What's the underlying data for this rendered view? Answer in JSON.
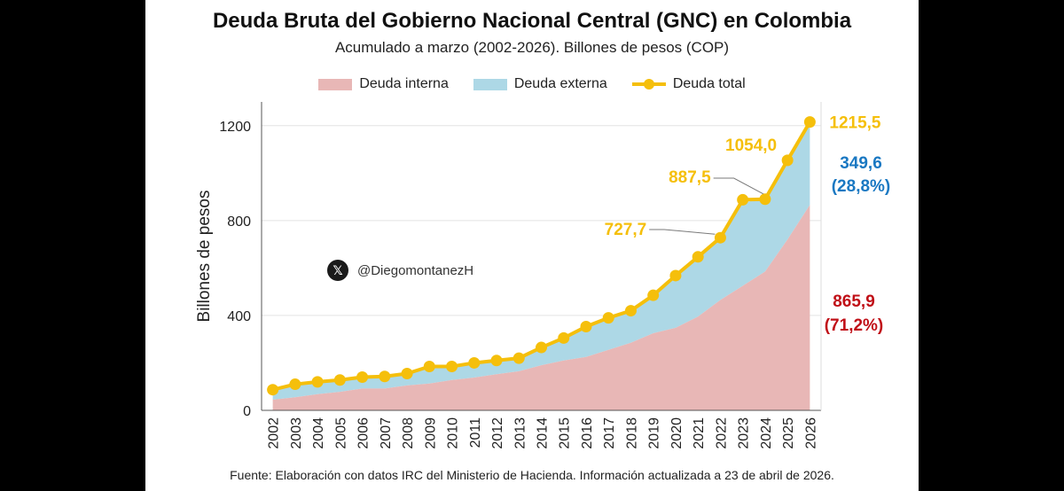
{
  "chart_data": {
    "type": "area",
    "title": "Deuda Bruta del Gobierno Nacional Central (GNC) en Colombia",
    "subtitle": "Acumulado a marzo (2002-2026). Billones de pesos (COP)",
    "ylabel": "Billones de pesos",
    "xlabel": "",
    "ylim": [
      0,
      1300
    ],
    "yticks": [
      0,
      400,
      800,
      1200
    ],
    "grid": "horizontal",
    "legend_position": "top",
    "categories": [
      "2002",
      "2003",
      "2004",
      "2005",
      "2006",
      "2007",
      "2008",
      "2009",
      "2010",
      "2011",
      "2012",
      "2013",
      "2014",
      "2015",
      "2016",
      "2017",
      "2018",
      "2019",
      "2020",
      "2021",
      "2022",
      "2023",
      "2024",
      "2025",
      "2026"
    ],
    "series": [
      {
        "name": "Deuda interna",
        "type": "area",
        "color": "#e8b7b6",
        "values": [
          45,
          55,
          68,
          78,
          92,
          92,
          105,
          113,
          128,
          138,
          152,
          165,
          190,
          210,
          225,
          255,
          285,
          325,
          348,
          395,
          465,
          525,
          585,
          720,
          865.9
        ]
      },
      {
        "name": "Deuda externa",
        "type": "area",
        "color": "#add8e6",
        "values": [
          42,
          55,
          52,
          50,
          48,
          51,
          50,
          72,
          57,
          62,
          58,
          55,
          75,
          95,
          128,
          135,
          135,
          160,
          220,
          252,
          262,
          352,
          305,
          334,
          349.6
        ]
      },
      {
        "name": "Deuda total",
        "type": "line",
        "color": "#f5bf0b",
        "values": [
          87,
          110,
          120,
          128,
          140,
          143,
          155,
          185,
          185,
          200,
          210,
          220,
          265,
          305,
          353,
          390,
          420,
          485,
          568,
          647,
          727.7,
          887.5,
          890,
          1054.0,
          1215.5
        ]
      }
    ],
    "annotations": [
      {
        "text": "1215,5",
        "category": "2026",
        "series": "Deuda total"
      },
      {
        "text": "1054,0",
        "category": "2025",
        "series": "Deuda total"
      },
      {
        "text": "887,5",
        "category": "2023",
        "series": "Deuda total"
      },
      {
        "text": "727,7",
        "category": "2022",
        "series": "Deuda total"
      },
      {
        "text": "349,6",
        "series": "Deuda externa"
      },
      {
        "text": "(28,8%)",
        "series": "Deuda externa"
      },
      {
        "text": "865,9",
        "series": "Deuda interna"
      },
      {
        "text": "(71,2%)",
        "series": "Deuda interna"
      }
    ]
  },
  "watermark": {
    "icon": "x-logo-icon",
    "handle": "@DiegomontanezH"
  },
  "source": "Fuente: Elaboración con datos IRC del Ministerio de Hacienda. Información actualizada a 23 de abril de 2026."
}
